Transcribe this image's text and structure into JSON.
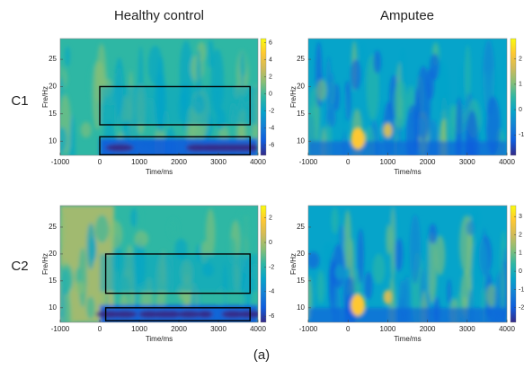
{
  "column_titles": [
    "Healthy control",
    "Amputee"
  ],
  "row_labels": [
    "C1",
    "C2"
  ],
  "caption": "(a)",
  "colormap": [
    "#352a87",
    "#0f5cdd",
    "#1481d6",
    "#06a4ca",
    "#2eb7a4",
    "#87bf77",
    "#d1bb59",
    "#fec832",
    "#f9fb0e"
  ],
  "chart_data": [
    {
      "type": "heatmap",
      "xlabel": "Time/ms",
      "ylabel": "Fre/Hz",
      "xlim": [
        -1000,
        4000
      ],
      "xticks": [
        -1000,
        0,
        1000,
        2000,
        3000,
        4000
      ],
      "ylim": [
        7.4,
        28.8
      ],
      "yticks": [
        10,
        15,
        20,
        25
      ],
      "clim": [
        -7.2,
        6.5
      ],
      "cticks": [
        6,
        4,
        2,
        0,
        -2,
        -4,
        -6
      ],
      "boxes": [
        {
          "x": [
            0,
            3800
          ],
          "y": [
            13,
            20
          ]
        },
        {
          "x": [
            0,
            3800
          ],
          "y": [
            7.5,
            10.8
          ]
        }
      ]
    },
    {
      "type": "heatmap",
      "xlabel": "Time/ms",
      "ylabel": "Fre/Hz",
      "xlim": [
        -1000,
        4000
      ],
      "xticks": [
        -1000,
        0,
        1000,
        2000,
        3000,
        4000
      ],
      "ylim": [
        7.4,
        28.8
      ],
      "yticks": [
        10,
        15,
        20,
        25
      ],
      "clim": [
        -1.8,
        2.8
      ],
      "cticks": [
        2,
        1,
        0,
        -1
      ]
    },
    {
      "type": "heatmap",
      "xlabel": "Time/ms",
      "ylabel": "Fre/Hz",
      "xlim": [
        -1000,
        4000
      ],
      "xticks": [
        -1000,
        0,
        1000,
        2000,
        3000,
        4000
      ],
      "ylim": [
        7.3,
        29
      ],
      "yticks": [
        10,
        15,
        20,
        25
      ],
      "clim": [
        -6.5,
        3
      ],
      "cticks": [
        2,
        0,
        -2,
        -4,
        -6
      ],
      "boxes": [
        {
          "x": [
            150,
            3800
          ],
          "y": [
            12.7,
            20
          ]
        },
        {
          "x": [
            150,
            3800
          ],
          "y": [
            7.6,
            10
          ]
        }
      ]
    },
    {
      "type": "heatmap",
      "xlabel": "Time/ms",
      "ylabel": "Fre/Hz",
      "xlim": [
        -1000,
        4000
      ],
      "xticks": [
        -1000,
        0,
        1000,
        2000,
        3000,
        4000
      ],
      "ylim": [
        7.3,
        29
      ],
      "yticks": [
        10,
        15,
        20,
        25
      ],
      "clim": [
        -2.8,
        3.6
      ],
      "cticks": [
        3,
        2,
        1,
        0,
        -1,
        -2
      ]
    }
  ]
}
